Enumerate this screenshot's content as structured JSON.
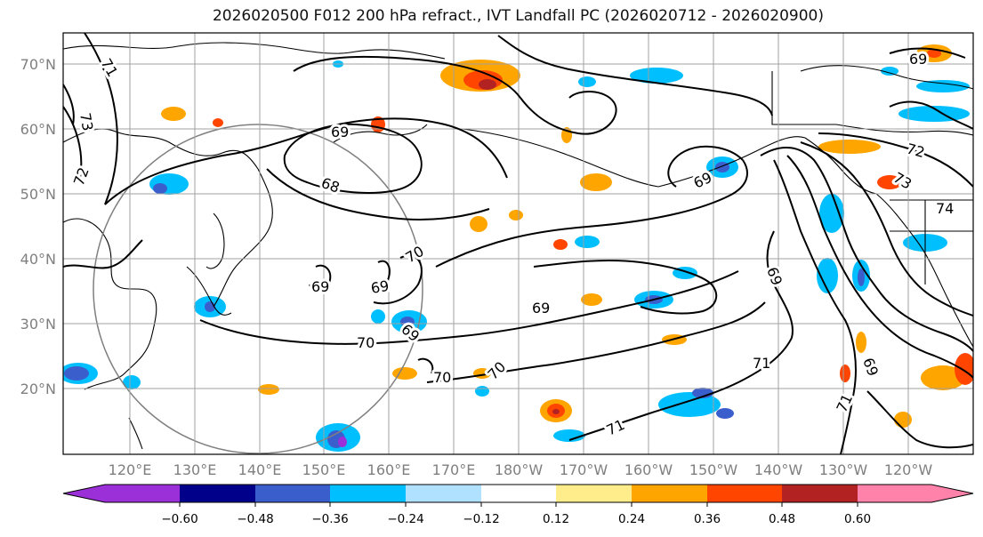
{
  "title": "2026020500 F012 200 hPa refract., IVT Landfall PC (2026020712 - 2026020900)",
  "lat_labels": [
    "70°N",
    "60°N",
    "50°N",
    "40°N",
    "30°N",
    "20°N"
  ],
  "lon_labels": [
    "120°E",
    "130°E",
    "140°E",
    "150°E",
    "160°E",
    "170°E",
    "180°W",
    "170°W",
    "160°W",
    "150°W",
    "140°W",
    "130°W",
    "120°W"
  ],
  "contour_labels": {
    "c71a": "71",
    "c73": "73",
    "c72a": "72",
    "c69a": "69",
    "c68": "68",
    "c70a": "70",
    "c69b": "69",
    "c69c": "69",
    "c69d": "69",
    "c70b": "70",
    "c69e": "69",
    "c69f": "69",
    "c70c": "70",
    "c70d": "70",
    "c71b": "71",
    "c71c": "71",
    "c69g": "69",
    "c71d": "71",
    "c72b": "72",
    "c73b": "73",
    "c74": "74",
    "c69h": "69",
    "c69i": "69"
  },
  "colorbar": {
    "colors": [
      "#9b30d9",
      "#00008b",
      "#3a5fcd",
      "#00bfff",
      "#b0e2ff",
      "#ffffff",
      "#ffec8b",
      "#ffa500",
      "#ff4500",
      "#b22222",
      "#ff82ab"
    ],
    "tick_labels": [
      "−0.60",
      "−0.48",
      "−0.36",
      "−0.24",
      "−0.12",
      "0.12",
      "0.24",
      "0.36",
      "0.48",
      "0.60"
    ]
  }
}
